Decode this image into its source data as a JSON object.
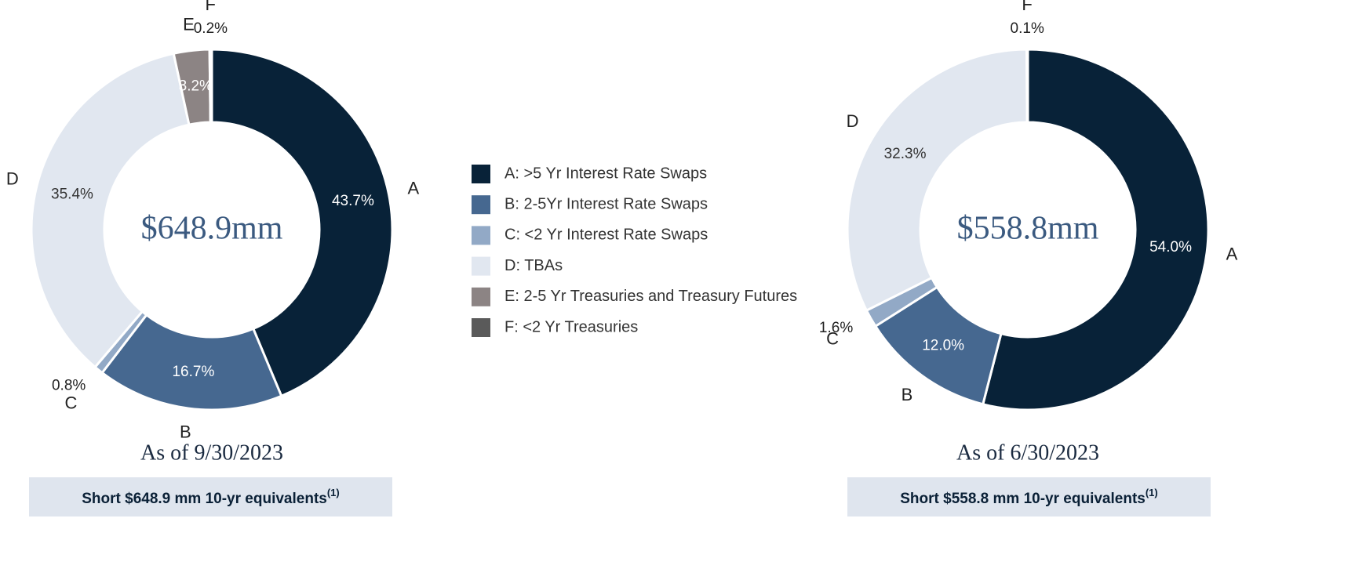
{
  "legend": {
    "items": [
      {
        "label": "A: >5 Yr Interest Rate Swaps",
        "color": "#082238"
      },
      {
        "label": "B: 2-5Yr Interest Rate Swaps",
        "color": "#466890"
      },
      {
        "label": "C: <2 Yr Interest Rate Swaps",
        "color": "#92a9c6"
      },
      {
        "label": "D: TBAs",
        "color": "#e1e7f0"
      },
      {
        "label": "E: 2-5 Yr Treasuries and Treasury Futures",
        "color": "#8c8484"
      },
      {
        "label": "F: <2 Yr Treasuries",
        "color": "#5a5a5a"
      }
    ]
  },
  "chart_data": [
    {
      "type": "donut",
      "categories": [
        "A",
        "B",
        "C",
        "D",
        "E",
        "F"
      ],
      "values": [
        43.7,
        16.7,
        0.8,
        35.4,
        3.2,
        0.2
      ],
      "value_labels": [
        "43.7%",
        "16.7%",
        "0.8%",
        "35.4%",
        "3.2%",
        "0.2%"
      ],
      "colors": [
        "#082238",
        "#466890",
        "#92a9c6",
        "#e1e7f0",
        "#8c8484",
        "#5a5a5a"
      ],
      "center_label": "$648.9mm",
      "caption": "As of 9/30/2023",
      "footnote": "Short $648.9 mm 10-yr equivalents",
      "footnote_sup": "(1)"
    },
    {
      "type": "donut",
      "categories": [
        "A",
        "B",
        "C",
        "D",
        "F"
      ],
      "values": [
        54.0,
        12.0,
        1.6,
        32.3,
        0.1
      ],
      "value_labels": [
        "54.0%",
        "12.0%",
        "1.6%",
        "32.3%",
        "0.1%"
      ],
      "colors": [
        "#082238",
        "#466890",
        "#92a9c6",
        "#e1e7f0",
        "#5a5a5a"
      ],
      "center_label": "$558.8mm",
      "caption": "As of 6/30/2023",
      "footnote": "Short $558.8 mm 10-yr equivalents",
      "footnote_sup": "(1)"
    }
  ]
}
